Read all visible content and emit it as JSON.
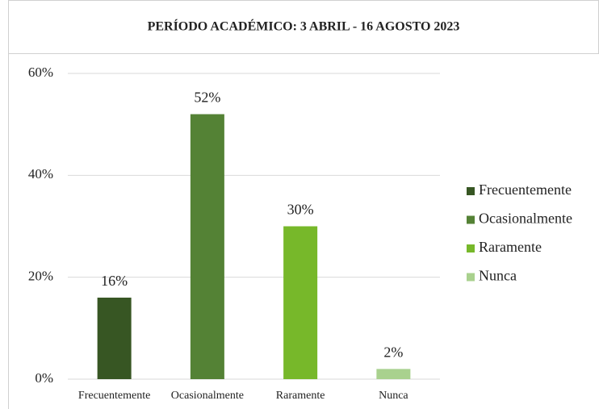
{
  "chart_data": {
    "type": "bar",
    "title": "PERÍODO ACADÉMICO: 3 ABRIL - 16 AGOSTO 2023",
    "categories": [
      "Frecuentemente",
      "Ocasionalmente",
      "Raramente",
      "Nunca"
    ],
    "values": [
      16,
      52,
      30,
      2
    ],
    "value_labels": [
      "16%",
      "52%",
      "30%",
      "2%"
    ],
    "colors": [
      "#375623",
      "#548235",
      "#77b82a",
      "#a9d18e"
    ],
    "ylim": [
      0,
      60
    ],
    "yticks": [
      {
        "value": 0,
        "label": "0%"
      },
      {
        "value": 20,
        "label": "20%"
      },
      {
        "value": 40,
        "label": "40%"
      },
      {
        "value": 60,
        "label": "60%"
      }
    ],
    "grid": true,
    "legend": "right"
  }
}
